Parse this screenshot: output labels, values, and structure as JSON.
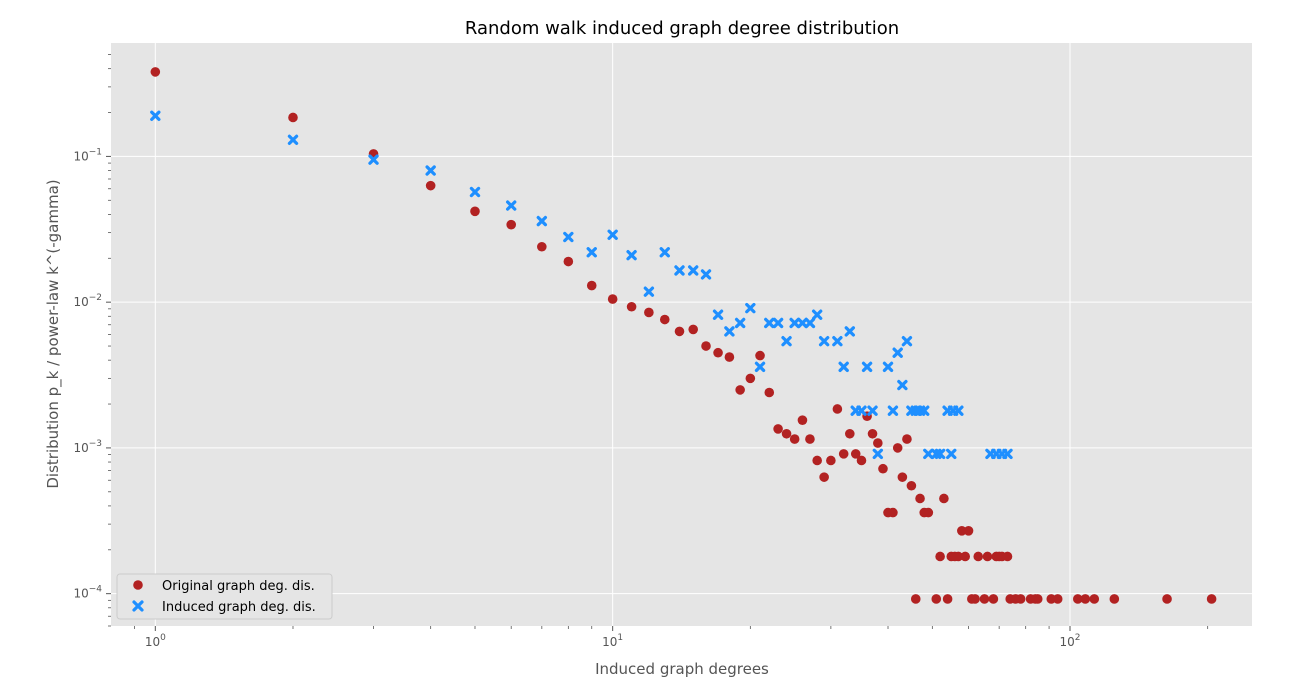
{
  "chart_data": {
    "type": "scatter",
    "title": "Random walk induced graph degree distribution",
    "xlabel": "Induced graph degrees",
    "ylabel": "Distribution p_k / power-law k^(-gamma)",
    "xscale": "log",
    "yscale": "log",
    "xlim": [
      0.8,
      250
    ],
    "ylim": [
      6e-05,
      0.6
    ],
    "grid": true,
    "legend_position": "lower-left",
    "x_ticks": [
      {
        "value": 1,
        "base": "10",
        "exp": "0"
      },
      {
        "value": 10,
        "base": "10",
        "exp": "1"
      },
      {
        "value": 100,
        "base": "10",
        "exp": "2"
      }
    ],
    "y_ticks": [
      {
        "value": 0.0001,
        "base": "10",
        "exp": "−4"
      },
      {
        "value": 0.001,
        "base": "10",
        "exp": "−3"
      },
      {
        "value": 0.01,
        "base": "10",
        "exp": "−2"
      },
      {
        "value": 0.1,
        "base": "10",
        "exp": "−1"
      }
    ],
    "series": [
      {
        "name": "Original graph deg. dis.",
        "marker": "circle",
        "color": "#b22222",
        "points": [
          [
            1,
            0.38
          ],
          [
            2,
            0.185
          ],
          [
            3,
            0.104
          ],
          [
            4,
            0.063
          ],
          [
            5,
            0.042
          ],
          [
            6,
            0.034
          ],
          [
            7,
            0.024
          ],
          [
            8,
            0.019
          ],
          [
            9,
            0.013
          ],
          [
            10,
            0.0105
          ],
          [
            11,
            0.0093
          ],
          [
            12,
            0.0085
          ],
          [
            13,
            0.0076
          ],
          [
            14,
            0.0063
          ],
          [
            15,
            0.0065
          ],
          [
            16,
            0.005
          ],
          [
            17,
            0.0045
          ],
          [
            18,
            0.0042
          ],
          [
            19,
            0.0025
          ],
          [
            20,
            0.003
          ],
          [
            21,
            0.0043
          ],
          [
            22,
            0.0024
          ],
          [
            23,
            0.00135
          ],
          [
            24,
            0.00125
          ],
          [
            25,
            0.00115
          ],
          [
            26,
            0.00155
          ],
          [
            27,
            0.00115
          ],
          [
            28,
            0.00082
          ],
          [
            29,
            0.00063
          ],
          [
            30,
            0.00082
          ],
          [
            31,
            0.00185
          ],
          [
            32,
            0.00091
          ],
          [
            33,
            0.00125
          ],
          [
            34,
            0.00091
          ],
          [
            35,
            0.00082
          ],
          [
            36,
            0.00165
          ],
          [
            37,
            0.00125
          ],
          [
            38,
            0.00108
          ],
          [
            39,
            0.00072
          ],
          [
            40,
            0.00036
          ],
          [
            41,
            0.00036
          ],
          [
            42,
            0.001
          ],
          [
            43,
            0.00063
          ],
          [
            44,
            0.00115
          ],
          [
            45,
            0.00055
          ],
          [
            46,
            9.2e-05
          ],
          [
            47,
            0.00045
          ],
          [
            48,
            0.00036
          ],
          [
            49,
            0.00036
          ],
          [
            51,
            9.2e-05
          ],
          [
            52,
            0.00018
          ],
          [
            53,
            0.00045
          ],
          [
            54,
            9.2e-05
          ],
          [
            55,
            0.00018
          ],
          [
            56,
            0.00018
          ],
          [
            57,
            0.00018
          ],
          [
            58,
            0.00027
          ],
          [
            59,
            0.00018
          ],
          [
            60,
            0.00027
          ],
          [
            61,
            9.2e-05
          ],
          [
            62,
            9.2e-05
          ],
          [
            63,
            0.00018
          ],
          [
            65,
            9.2e-05
          ],
          [
            66,
            0.00018
          ],
          [
            68,
            9.2e-05
          ],
          [
            69,
            0.00018
          ],
          [
            70,
            0.00018
          ],
          [
            71,
            0.00018
          ],
          [
            73,
            0.00018
          ],
          [
            74,
            9.2e-05
          ],
          [
            76,
            9.2e-05
          ],
          [
            78,
            9.2e-05
          ],
          [
            82,
            9.2e-05
          ],
          [
            84,
            9.2e-05
          ],
          [
            85,
            9.2e-05
          ],
          [
            91,
            9.2e-05
          ],
          [
            94,
            9.2e-05
          ],
          [
            104,
            9.2e-05
          ],
          [
            108,
            9.2e-05
          ],
          [
            113,
            9.2e-05
          ],
          [
            125,
            9.2e-05
          ],
          [
            163,
            9.2e-05
          ],
          [
            204,
            9.2e-05
          ]
        ]
      },
      {
        "name": "Induced graph deg. dis.",
        "marker": "x",
        "color": "#1e8fff",
        "points": [
          [
            1,
            0.19
          ],
          [
            2,
            0.13
          ],
          [
            3,
            0.095
          ],
          [
            4,
            0.08
          ],
          [
            5,
            0.057
          ],
          [
            6,
            0.046
          ],
          [
            7,
            0.036
          ],
          [
            8,
            0.028
          ],
          [
            9,
            0.022
          ],
          [
            10,
            0.029
          ],
          [
            11,
            0.021
          ],
          [
            12,
            0.0118
          ],
          [
            13,
            0.022
          ],
          [
            14,
            0.0165
          ],
          [
            15,
            0.0165
          ],
          [
            16,
            0.0155
          ],
          [
            17,
            0.0082
          ],
          [
            18,
            0.0063
          ],
          [
            19,
            0.0072
          ],
          [
            20,
            0.0091
          ],
          [
            21,
            0.0036
          ],
          [
            22,
            0.0072
          ],
          [
            23,
            0.0072
          ],
          [
            24,
            0.0054
          ],
          [
            25,
            0.0072
          ],
          [
            26,
            0.0072
          ],
          [
            27,
            0.0072
          ],
          [
            28,
            0.0082
          ],
          [
            29,
            0.0054
          ],
          [
            31,
            0.0054
          ],
          [
            32,
            0.0036
          ],
          [
            33,
            0.0063
          ],
          [
            34,
            0.0018
          ],
          [
            35,
            0.0018
          ],
          [
            36,
            0.0036
          ],
          [
            37,
            0.0018
          ],
          [
            38,
            0.00091
          ],
          [
            40,
            0.0036
          ],
          [
            41,
            0.0018
          ],
          [
            42,
            0.0045
          ],
          [
            43,
            0.0027
          ],
          [
            44,
            0.0054
          ],
          [
            45,
            0.0018
          ],
          [
            46,
            0.0018
          ],
          [
            47,
            0.0018
          ],
          [
            48,
            0.0018
          ],
          [
            49,
            0.00091
          ],
          [
            51,
            0.00091
          ],
          [
            52,
            0.00091
          ],
          [
            54,
            0.0018
          ],
          [
            55,
            0.00091
          ],
          [
            55.5,
            0.0018
          ],
          [
            57,
            0.0018
          ],
          [
            67,
            0.00091
          ],
          [
            69,
            0.00091
          ],
          [
            71,
            0.00091
          ],
          [
            73,
            0.00091
          ]
        ]
      }
    ]
  }
}
